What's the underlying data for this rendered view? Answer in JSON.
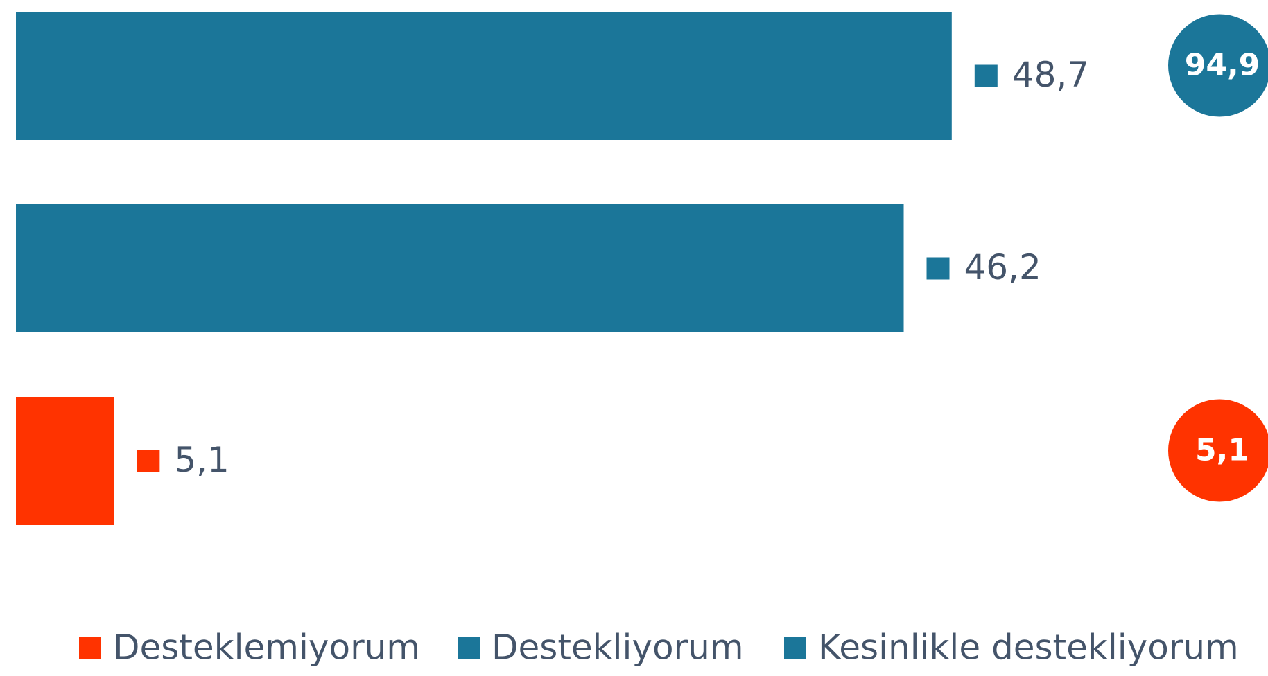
{
  "chart_data": {
    "type": "barh",
    "categories": [
      null,
      null,
      null
    ],
    "series": [
      {
        "name": "Desteklemiyorum",
        "color": "#ff3300",
        "values": [
          null,
          null,
          5.1
        ],
        "value_labels": [
          null,
          null,
          "5,1"
        ]
      },
      {
        "name": "Destekliyorum",
        "color": "#1b7699",
        "values": [
          null,
          46.2,
          null
        ],
        "value_labels": [
          null,
          "46,2",
          null
        ]
      },
      {
        "name": "Kesinlikle destekliyorum",
        "color": "#1b7699",
        "values": [
          48.7,
          null,
          null
        ],
        "value_labels": [
          "48,7",
          null,
          null
        ]
      }
    ],
    "xlim": [
      0,
      60
    ],
    "totals": [
      {
        "value": 94.9,
        "label": "94,9",
        "row": 0,
        "color": "#1b7699"
      },
      {
        "value": 5.1,
        "label": "5,1",
        "row": 2,
        "color": "#ff3300"
      }
    ],
    "legend": "bottom"
  }
}
